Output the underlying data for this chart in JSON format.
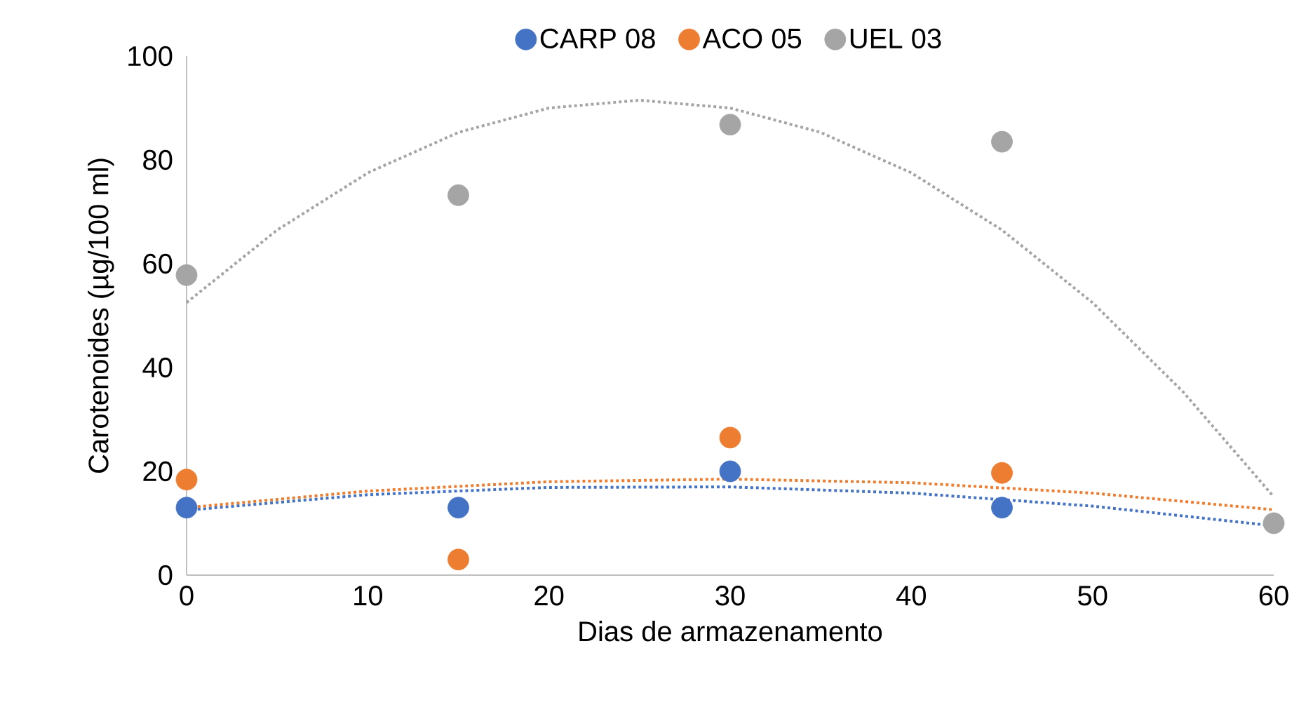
{
  "chart_data": {
    "type": "scatter",
    "xlabel": "Dias de armazenamento",
    "ylabel": "Carotenoides (µg/100 ml)",
    "xlim": [
      0,
      60
    ],
    "xticks": [
      0,
      10,
      20,
      30,
      40,
      50,
      60
    ],
    "ylim": [
      0,
      100
    ],
    "yticks": [
      0,
      20,
      40,
      60,
      80,
      100
    ],
    "grid": false,
    "legend": "top",
    "marker": "circle",
    "series": [
      {
        "name": "CARP 08",
        "color": "#4472c4",
        "x": [
          0,
          15,
          30,
          45
        ],
        "values": [
          13,
          13,
          20,
          13
        ]
      },
      {
        "name": "ACO 05",
        "color": "#ed7d31",
        "x": [
          0,
          15,
          30,
          45
        ],
        "values": [
          18.4,
          3,
          26.5,
          19.7
        ]
      },
      {
        "name": "UEL 03",
        "color": "#a5a5a5",
        "x": [
          0,
          15,
          30,
          45,
          60
        ],
        "values": [
          57.8,
          73.2,
          86.8,
          83.5,
          10
        ]
      },
      {
        "type": "line",
        "color": "#4472c4",
        "line_style": "dotted",
        "marker": "none",
        "x": [
          0,
          10,
          20,
          30,
          40,
          50,
          60
        ],
        "values": [
          12.5,
          15.5,
          16.9,
          17.0,
          15.8,
          13.3,
          9.5
        ]
      },
      {
        "type": "line",
        "color": "#ed7d31",
        "line_style": "dotted",
        "marker": "none",
        "x": [
          0,
          10,
          20,
          30,
          40,
          50,
          60
        ],
        "values": [
          13,
          16.2,
          18,
          18.5,
          17.8,
          15.8,
          12.6
        ]
      },
      {
        "type": "line",
        "color": "#a5a5a5",
        "line_style": "dotted",
        "marker": "none",
        "x": [
          0,
          5,
          10,
          15,
          20,
          25,
          30,
          35,
          40,
          45,
          50,
          55,
          60
        ],
        "values": [
          52.5,
          66.5,
          77.5,
          85.3,
          90.0,
          91.5,
          90.0,
          85.3,
          77.5,
          66.5,
          52.5,
          35.3,
          15.1
        ]
      }
    ]
  }
}
